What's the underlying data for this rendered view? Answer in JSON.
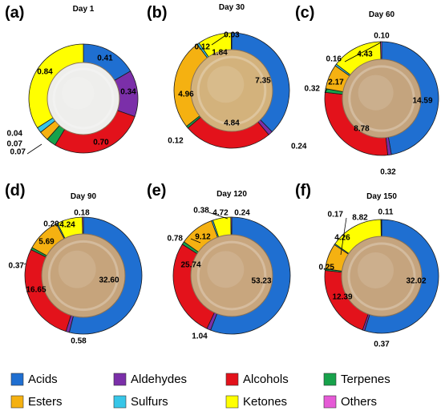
{
  "category_colors": {
    "Acids": "#1f6fd1",
    "Aldehydes": "#7b2fa9",
    "Alcohols": "#e3121b",
    "Terpenes": "#17a24b",
    "Esters": "#f5b111",
    "Sulfurs": "#37c6e8",
    "Ketones": "#ffff00",
    "Others": "#e55ad6"
  },
  "legend": [
    "Acids",
    "Aldehydes",
    "Alcohols",
    "Terpenes",
    "Esters",
    "Sulfurs",
    "Ketones",
    "Others"
  ],
  "chart_data": [
    {
      "type": "pie",
      "panel": "(a)",
      "title": "Day 1",
      "style": "donut",
      "center_fill": "#eeeeec",
      "slices": [
        {
          "category": "Acids",
          "value": 0.41
        },
        {
          "category": "Aldehydes",
          "value": 0.34
        },
        {
          "category": "Alcohols",
          "value": 0.7
        },
        {
          "category": "Terpenes",
          "value": 0.07
        },
        {
          "category": "Esters",
          "value": 0.07
        },
        {
          "category": "Sulfurs",
          "value": 0.04
        },
        {
          "category": "Ketones",
          "value": 0.84
        }
      ]
    },
    {
      "type": "pie",
      "panel": "(b)",
      "title": "Day 30",
      "style": "donut",
      "center_fill": "#d3b27c",
      "slices": [
        {
          "category": "Acids",
          "value": 7.35
        },
        {
          "category": "Aldehydes",
          "value": 0.24
        },
        {
          "category": "Alcohols",
          "value": 4.84
        },
        {
          "category": "Terpenes",
          "value": 0.12
        },
        {
          "category": "Esters",
          "value": 4.96
        },
        {
          "category": "Sulfurs",
          "value": 0.12
        },
        {
          "category": "Ketones",
          "value": 1.84
        },
        {
          "category": "Others",
          "value": 0.03
        }
      ]
    },
    {
      "type": "pie",
      "panel": "(c)",
      "title": "Day 60",
      "style": "donut",
      "center_fill": "#c4a47e",
      "slices": [
        {
          "category": "Acids",
          "value": 14.59
        },
        {
          "category": "Aldehydes",
          "value": 0.32
        },
        {
          "category": "Alcohols",
          "value": 8.78
        },
        {
          "category": "Terpenes",
          "value": 0.32
        },
        {
          "category": "Esters",
          "value": 2.17
        },
        {
          "category": "Sulfurs",
          "value": 0.16
        },
        {
          "category": "Ketones",
          "value": 4.43
        },
        {
          "category": "Others",
          "value": 0.1
        }
      ]
    },
    {
      "type": "pie",
      "panel": "(d)",
      "title": "Day 90",
      "style": "donut",
      "center_fill": "#c6a47c",
      "slices": [
        {
          "category": "Acids",
          "value": 32.6
        },
        {
          "category": "Aldehydes",
          "value": 0.58
        },
        {
          "category": "Alcohols",
          "value": 16.65
        },
        {
          "category": "Terpenes",
          "value": 0.37
        },
        {
          "category": "Esters",
          "value": 5.69
        },
        {
          "category": "Sulfurs",
          "value": 0.2
        },
        {
          "category": "Ketones",
          "value": 4.24
        },
        {
          "category": "Others",
          "value": 0.18
        }
      ]
    },
    {
      "type": "pie",
      "panel": "(e)",
      "title": "Day 120",
      "style": "donut",
      "center_fill": "#c8a67e",
      "slices": [
        {
          "category": "Acids",
          "value": 53.23
        },
        {
          "category": "Aldehydes",
          "value": 1.04
        },
        {
          "category": "Alcohols",
          "value": 25.74
        },
        {
          "category": "Terpenes",
          "value": 0.78
        },
        {
          "category": "Esters",
          "value": 9.12
        },
        {
          "category": "Sulfurs",
          "value": 0.38
        },
        {
          "category": "Ketones",
          "value": 4.72
        },
        {
          "category": "Others",
          "value": 0.24
        }
      ]
    },
    {
      "type": "pie",
      "panel": "(f)",
      "title": "Day 150",
      "style": "donut",
      "center_fill": "#c5a47e",
      "slices": [
        {
          "category": "Acids",
          "value": 32.02
        },
        {
          "category": "Aldehydes",
          "value": 0.37
        },
        {
          "category": "Alcohols",
          "value": 12.39
        },
        {
          "category": "Terpenes",
          "value": 0.25
        },
        {
          "category": "Esters",
          "value": 4.26
        },
        {
          "category": "Sulfurs",
          "value": 0.17
        },
        {
          "category": "Ketones",
          "value": 8.82
        },
        {
          "category": "Others",
          "value": 0.11
        }
      ]
    }
  ]
}
